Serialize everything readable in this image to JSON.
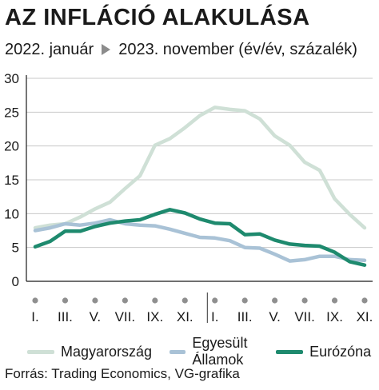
{
  "header": {
    "title": "AZ INFLÁCIÓ ALAKULÁSA",
    "period_start": "2022. január",
    "period_end": "2023. november (év/év, százalék)",
    "arrow_icon": "play-arrow-icon"
  },
  "chart_data": {
    "type": "line",
    "y_ticks": [
      "30",
      "25",
      "20",
      "15",
      "10",
      "5",
      "0"
    ],
    "ylim": [
      0,
      30
    ],
    "x_ticks": [
      "I.",
      "III.",
      "V.",
      "VII.",
      "IX.",
      "XI.",
      "I.",
      "III.",
      "V.",
      "VII.",
      "IX.",
      "XI."
    ],
    "grid": true,
    "series": [
      {
        "name": "Magyarország",
        "color": "#cfe0d6",
        "values": [
          7.9,
          8.3,
          8.5,
          9.5,
          10.7,
          11.7,
          13.7,
          15.6,
          20.1,
          21.1,
          22.7,
          24.5,
          25.7,
          25.4,
          25.2,
          24.0,
          21.5,
          20.1,
          17.6,
          16.4,
          12.2,
          9.9,
          7.9
        ]
      },
      {
        "name": "Egyesült Államok",
        "color": "#a9c2d6",
        "values": [
          7.5,
          7.9,
          8.5,
          8.3,
          8.6,
          9.1,
          8.5,
          8.3,
          8.2,
          7.7,
          7.1,
          6.5,
          6.4,
          6.0,
          5.0,
          4.9,
          4.0,
          3.0,
          3.2,
          3.7,
          3.7,
          3.2,
          3.1
        ]
      },
      {
        "name": "Eurózóna",
        "color": "#1e8a6e",
        "values": [
          5.1,
          5.9,
          7.4,
          7.4,
          8.1,
          8.6,
          8.9,
          9.1,
          9.9,
          10.6,
          10.1,
          9.2,
          8.6,
          8.5,
          6.9,
          7.0,
          6.1,
          5.5,
          5.3,
          5.2,
          4.3,
          2.9,
          2.4
        ]
      }
    ]
  },
  "source": "Forrás: Trading Economics, VG-grafika"
}
